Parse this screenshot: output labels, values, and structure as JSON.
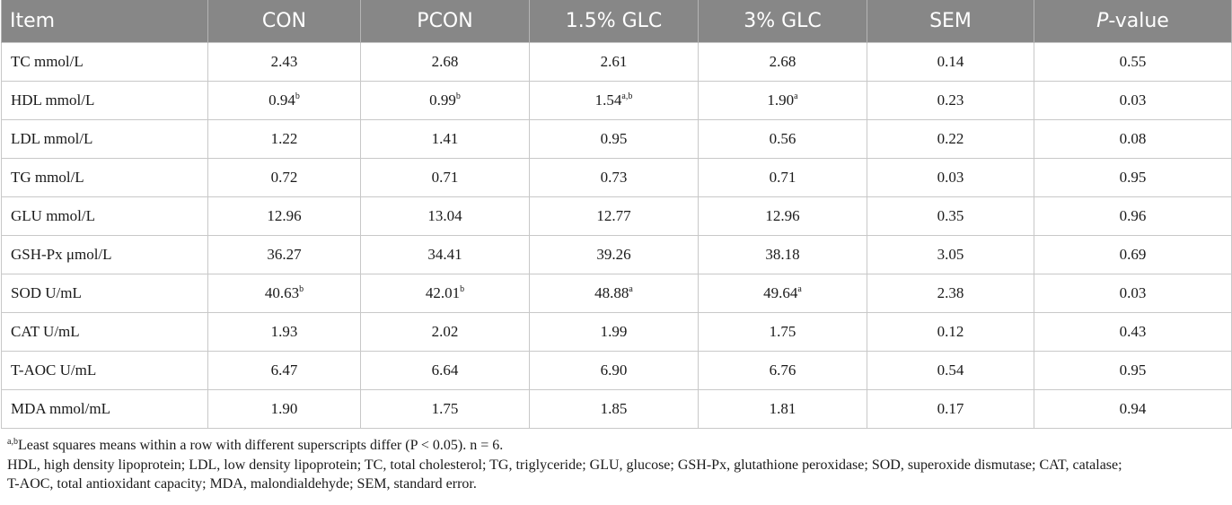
{
  "table": {
    "header": {
      "item": "Item",
      "con": "CON",
      "pcon": "PCON",
      "glc15": "1.5% GLC",
      "glc3": "3% GLC",
      "sem": "SEM",
      "p_italic": "P",
      "p_rest": "-value"
    },
    "rows": [
      {
        "item": "TC mmol/L",
        "con": "2.43",
        "con_sup": "",
        "pcon": "2.68",
        "pcon_sup": "",
        "glc15": "2.61",
        "glc15_sup": "",
        "glc3": "2.68",
        "glc3_sup": "",
        "sem": "0.14",
        "p": "0.55"
      },
      {
        "item": "HDL mmol/L",
        "con": "0.94",
        "con_sup": "b",
        "pcon": "0.99",
        "pcon_sup": "b",
        "glc15": "1.54",
        "glc15_sup": "a,b",
        "glc3": "1.90",
        "glc3_sup": "a",
        "sem": "0.23",
        "p": "0.03"
      },
      {
        "item": "LDL mmol/L",
        "con": "1.22",
        "con_sup": "",
        "pcon": "1.41",
        "pcon_sup": "",
        "glc15": "0.95",
        "glc15_sup": "",
        "glc3": "0.56",
        "glc3_sup": "",
        "sem": "0.22",
        "p": "0.08"
      },
      {
        "item": "TG mmol/L",
        "con": "0.72",
        "con_sup": "",
        "pcon": "0.71",
        "pcon_sup": "",
        "glc15": "0.73",
        "glc15_sup": "",
        "glc3": "0.71",
        "glc3_sup": "",
        "sem": "0.03",
        "p": "0.95"
      },
      {
        "item": "GLU mmol/L",
        "con": "12.96",
        "con_sup": "",
        "pcon": "13.04",
        "pcon_sup": "",
        "glc15": "12.77",
        "glc15_sup": "",
        "glc3": "12.96",
        "glc3_sup": "",
        "sem": "0.35",
        "p": "0.96"
      },
      {
        "item": "GSH-Px μmol/L",
        "con": "36.27",
        "con_sup": "",
        "pcon": "34.41",
        "pcon_sup": "",
        "glc15": "39.26",
        "glc15_sup": "",
        "glc3": "38.18",
        "glc3_sup": "",
        "sem": "3.05",
        "p": "0.69"
      },
      {
        "item": "SOD U/mL",
        "con": "40.63",
        "con_sup": "b",
        "pcon": "42.01",
        "pcon_sup": "b",
        "glc15": "48.88",
        "glc15_sup": "a",
        "glc3": "49.64",
        "glc3_sup": "a",
        "sem": "2.38",
        "p": "0.03"
      },
      {
        "item": "CAT U/mL",
        "con": "1.93",
        "con_sup": "",
        "pcon": "2.02",
        "pcon_sup": "",
        "glc15": "1.99",
        "glc15_sup": "",
        "glc3": "1.75",
        "glc3_sup": "",
        "sem": "0.12",
        "p": "0.43"
      },
      {
        "item": "T-AOC U/mL",
        "con": "6.47",
        "con_sup": "",
        "pcon": "6.64",
        "pcon_sup": "",
        "glc15": "6.90",
        "glc15_sup": "",
        "glc3": "6.76",
        "glc3_sup": "",
        "sem": "0.54",
        "p": "0.95"
      },
      {
        "item": "MDA mmol/mL",
        "con": "1.90",
        "con_sup": "",
        "pcon": "1.75",
        "pcon_sup": "",
        "glc15": "1.85",
        "glc15_sup": "",
        "glc3": "1.81",
        "glc3_sup": "",
        "sem": "0.17",
        "p": "0.94"
      }
    ]
  },
  "footnotes": {
    "superscript_mark": "a,b",
    "superscript_text": "Least squares means within a row with different superscripts differ (P < 0.05). n = 6.",
    "abbrev_line1": "HDL, high density lipoprotein; LDL, low density lipoprotein; TC, total cholesterol; TG, triglyceride; GLU, glucose; GSH-Px, glutathione peroxidase; SOD, superoxide dismutase; CAT, catalase;",
    "abbrev_line2": "T-AOC, total antioxidant capacity; MDA, malondialdehyde; SEM, standard error."
  },
  "colors": {
    "header_bg": "#878787",
    "header_text": "#ffffff",
    "grid_line": "#c8c8c8"
  }
}
